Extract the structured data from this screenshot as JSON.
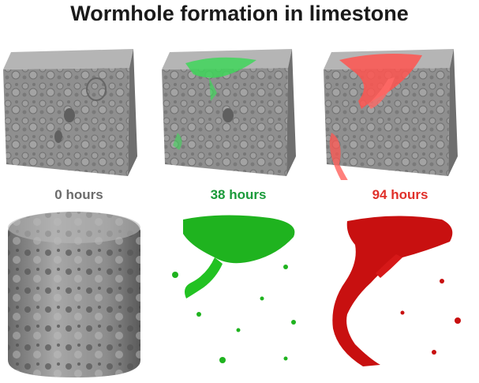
{
  "title": "Wormhole formation in limestone",
  "stages": [
    {
      "label": "0 hours",
      "color": "#6b6b6b",
      "overlay": "none"
    },
    {
      "label": "38 hours",
      "color": "#1a9a3a",
      "overlay": "#36c94e"
    },
    {
      "label": "94 hours",
      "color": "#e0302a",
      "overlay": "#ff5a55"
    }
  ],
  "bottom_row": [
    {
      "name": "gray-cylinder-sample",
      "color": "#8a8a8a"
    },
    {
      "name": "green-wormhole-volume",
      "color": "#1fb31f"
    },
    {
      "name": "red-wormhole-volume",
      "color": "#c81010"
    }
  ]
}
